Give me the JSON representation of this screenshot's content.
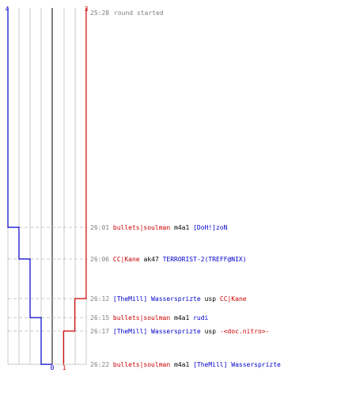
{
  "colors": {
    "background": "#ffffff",
    "grid": "#c8c8c8",
    "center_line": "#808080",
    "team_a": "#0000cc",
    "team_b": "#cc0000",
    "time_text": "#808080",
    "weapon_text": "#000000",
    "event_text": "#808080"
  },
  "scores": {
    "top_left": "4",
    "top_right": "3",
    "bottom_left": "0",
    "bottom_right": "1"
  },
  "start": {
    "time": "25:28",
    "text": "round started"
  },
  "kills": [
    {
      "time": "26:01",
      "killer": "bullets|soulman",
      "killer_team": "b",
      "weapon": "m4a1",
      "victim": "[DoH!]zoN",
      "victim_team": "a"
    },
    {
      "time": "26:06",
      "killer": "CC|Kane",
      "killer_team": "b",
      "weapon": "ak47",
      "victim": "TERRORIST-2(TREFF@NIX)",
      "victim_team": "a"
    },
    {
      "time": "26:12",
      "killer": "[TheMill] Wassersprizte",
      "killer_team": "a",
      "weapon": "usp",
      "victim": "CC|Kane",
      "victim_team": "b"
    },
    {
      "time": "26:15",
      "killer": "bullets|soulman",
      "killer_team": "b",
      "weapon": "m4a1",
      "victim": "rudi",
      "victim_team": "a"
    },
    {
      "time": "26:17",
      "killer": "[TheMill] Wassersprizte",
      "killer_team": "a",
      "weapon": "usp",
      "victim": "-<doc.nitro>-",
      "victim_team": "b"
    },
    {
      "time": "26:22",
      "killer": "bullets|soulman",
      "killer_team": "b",
      "weapon": "m4a1",
      "victim": "[TheMill] Wassersprizte",
      "victim_team": "a"
    }
  ],
  "team_a_alive": [
    4,
    3,
    2,
    2,
    1,
    1,
    0
  ],
  "team_b_alive": [
    3,
    3,
    3,
    2,
    2,
    1,
    1
  ]
}
